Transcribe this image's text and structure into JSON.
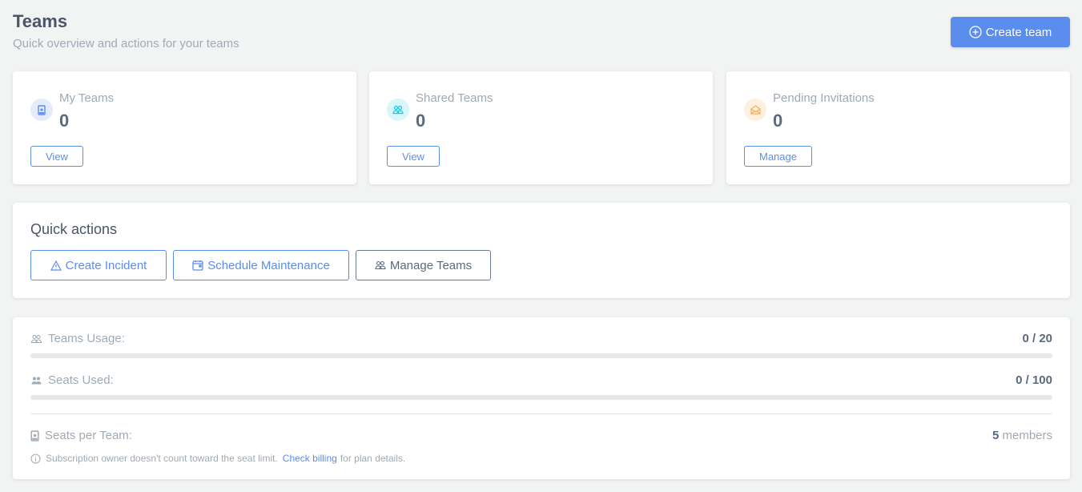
{
  "header": {
    "title": "Teams",
    "subtitle": "Quick overview and actions for your teams",
    "create_label": "Create team"
  },
  "stats": [
    {
      "label": "My Teams",
      "value": "0",
      "button": "View",
      "icon": "badge-icon",
      "color": "#5b8def",
      "bg": "#e3ebfc"
    },
    {
      "label": "Shared Teams",
      "value": "0",
      "button": "View",
      "icon": "users-icon",
      "color": "#22c3e0",
      "bg": "#d9f6fa"
    },
    {
      "label": "Pending Invitations",
      "value": "0",
      "button": "Manage",
      "icon": "envelope-open-icon",
      "color": "#f6ad55",
      "bg": "#fdf0de"
    }
  ],
  "quick_actions": {
    "title": "Quick actions",
    "items": [
      {
        "label": "Create Incident",
        "icon": "warning-icon"
      },
      {
        "label": "Schedule Maintenance",
        "icon": "calendar-icon"
      },
      {
        "label": "Manage Teams",
        "icon": "users-icon"
      }
    ]
  },
  "usage": {
    "teams": {
      "label": "Teams Usage:",
      "value": "0 / 20",
      "percent": 0
    },
    "seats": {
      "label": "Seats Used:",
      "value": "0 / 100",
      "percent": 0
    },
    "per_team": {
      "label": "Seats per Team:",
      "count": "5",
      "unit": "members"
    },
    "note": {
      "text": "Subscription owner doesn't count toward the seat limit.",
      "link": "Check billing",
      "after": "for plan details."
    }
  }
}
